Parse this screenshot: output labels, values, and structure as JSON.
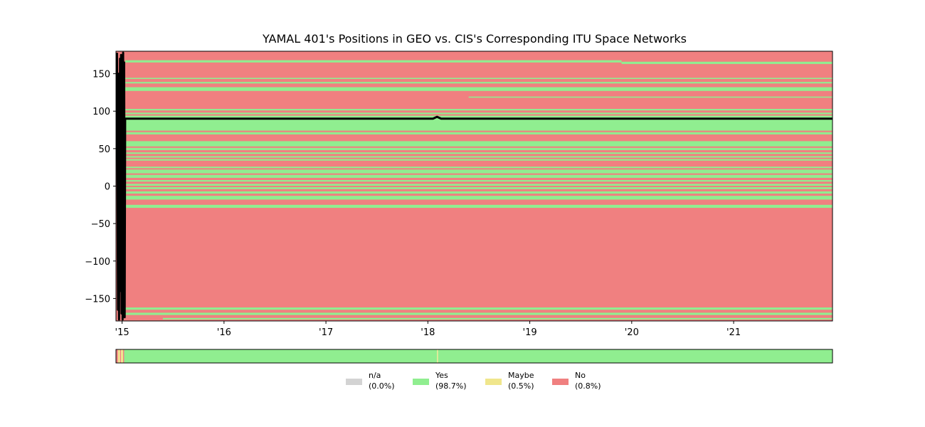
{
  "chart_data": {
    "type": "heatmap",
    "title": "YAMAL 401's Positions in GEO vs. CIS's Corresponding ITU Space Networks",
    "xlabel": "",
    "ylabel": "",
    "x_range": [
      2014.94,
      2021.97
    ],
    "y_range": [
      -180,
      180
    ],
    "x_ticks": [
      {
        "value": 2015,
        "label": "'15"
      },
      {
        "value": 2016,
        "label": "'16"
      },
      {
        "value": 2017,
        "label": "'17"
      },
      {
        "value": 2018,
        "label": "'18"
      },
      {
        "value": 2019,
        "label": "'19"
      },
      {
        "value": 2020,
        "label": "'20"
      },
      {
        "value": 2021,
        "label": "'21"
      }
    ],
    "y_ticks": [
      {
        "value": 150,
        "label": "150"
      },
      {
        "value": 100,
        "label": "100"
      },
      {
        "value": 50,
        "label": "50"
      },
      {
        "value": 0,
        "label": "0"
      },
      {
        "value": -50,
        "label": "−50"
      },
      {
        "value": -100,
        "label": "−100"
      },
      {
        "value": -150,
        "label": "−150"
      }
    ],
    "grid": false,
    "background_status": "No",
    "colors": {
      "n/a": "#d3d3d3",
      "Yes": "#90ee90",
      "Maybe": "#f0e68c",
      "No": "#f08080",
      "position": "#000000"
    },
    "yes_bands": [
      {
        "y0": 165,
        "y1": 168,
        "x0": 2015.03,
        "x1": 2019.9
      },
      {
        "y0": 163,
        "y1": 166,
        "x0": 2019.9,
        "x1": 2021.97
      },
      {
        "y0": 143,
        "y1": 144.5,
        "x0": 2015.03,
        "x1": 2021.97
      },
      {
        "y0": 137,
        "y1": 139,
        "x0": 2015.03,
        "x1": 2021.97
      },
      {
        "y0": 127,
        "y1": 132,
        "x0": 2015.03,
        "x1": 2021.97
      },
      {
        "y0": 118,
        "y1": 119.5,
        "x0": 2018.4,
        "x1": 2021.97
      },
      {
        "y0": 101,
        "y1": 103,
        "x0": 2015.03,
        "x1": 2021.97
      },
      {
        "y0": 96,
        "y1": 98,
        "x0": 2015.03,
        "x1": 2021.97
      },
      {
        "y0": 74,
        "y1": 94,
        "x0": 2015.03,
        "x1": 2021.97
      },
      {
        "y0": 69,
        "y1": 72,
        "x0": 2015.03,
        "x1": 2021.97
      },
      {
        "y0": 53,
        "y1": 60,
        "x0": 2015.03,
        "x1": 2021.97
      },
      {
        "y0": 48,
        "y1": 51,
        "x0": 2015.03,
        "x1": 2021.97
      },
      {
        "y0": 43,
        "y1": 45,
        "x0": 2015.03,
        "x1": 2021.97
      },
      {
        "y0": 38,
        "y1": 40,
        "x0": 2015.03,
        "x1": 2021.97
      },
      {
        "y0": 34,
        "y1": 36,
        "x0": 2015.03,
        "x1": 2021.97
      },
      {
        "y0": 24,
        "y1": 26,
        "x0": 2015.03,
        "x1": 2021.97
      },
      {
        "y0": 17,
        "y1": 22,
        "x0": 2015.03,
        "x1": 2021.97
      },
      {
        "y0": 11,
        "y1": 15,
        "x0": 2015.03,
        "x1": 2021.97
      },
      {
        "y0": 6,
        "y1": 8,
        "x0": 2015.03,
        "x1": 2021.97
      },
      {
        "y0": 0.5,
        "y1": 3,
        "x0": 2015.03,
        "x1": 2021.97
      },
      {
        "y0": -4,
        "y1": -1.5,
        "x0": 2015.03,
        "x1": 2021.97
      },
      {
        "y0": -10,
        "y1": -7,
        "x0": 2015.03,
        "x1": 2021.97
      },
      {
        "y0": -18,
        "y1": -13,
        "x0": 2015.03,
        "x1": 2021.97
      },
      {
        "y0": -29,
        "y1": -25,
        "x0": 2015.03,
        "x1": 2021.97
      },
      {
        "y0": -165,
        "y1": -162,
        "x0": 2015.03,
        "x1": 2021.97
      },
      {
        "y0": -172,
        "y1": -169,
        "x0": 2015.03,
        "x1": 2021.97
      },
      {
        "y0": -178,
        "y1": -176,
        "x0": 2015.4,
        "x1": 2021.97
      }
    ],
    "position_series": [
      {
        "x": 2014.95,
        "y": 178
      },
      {
        "x": 2014.96,
        "y": -165
      },
      {
        "x": 2014.965,
        "y": 150
      },
      {
        "x": 2014.97,
        "y": -178
      },
      {
        "x": 2014.98,
        "y": 170
      },
      {
        "x": 2014.985,
        "y": -140
      },
      {
        "x": 2014.99,
        "y": 175
      },
      {
        "x": 2014.995,
        "y": -170
      },
      {
        "x": 2015.0,
        "y": 160
      },
      {
        "x": 2015.005,
        "y": -178
      },
      {
        "x": 2015.01,
        "y": 178
      },
      {
        "x": 2015.015,
        "y": -150
      },
      {
        "x": 2015.02,
        "y": 165
      },
      {
        "x": 2015.025,
        "y": -175
      },
      {
        "x": 2015.03,
        "y": 90
      },
      {
        "x": 2018.05,
        "y": 90
      },
      {
        "x": 2018.09,
        "y": 92.5
      },
      {
        "x": 2018.13,
        "y": 90
      },
      {
        "x": 2021.97,
        "y": 90
      }
    ],
    "status_strip": [
      {
        "status": "No",
        "x0": 2014.94,
        "x1": 2014.96
      },
      {
        "status": "Maybe",
        "x0": 2014.96,
        "x1": 2014.98
      },
      {
        "status": "No",
        "x0": 2014.98,
        "x1": 2014.99
      },
      {
        "status": "Maybe",
        "x0": 2014.99,
        "x1": 2015.01
      },
      {
        "status": "No",
        "x0": 2015.01,
        "x1": 2015.02
      },
      {
        "status": "Yes",
        "x0": 2015.02,
        "x1": 2018.09
      },
      {
        "status": "Maybe",
        "x0": 2018.09,
        "x1": 2018.1
      },
      {
        "status": "Yes",
        "x0": 2018.1,
        "x1": 2021.97
      }
    ],
    "legend": {
      "placement": "bottom-center",
      "entries": [
        {
          "name": "n/a",
          "pct": "(0.0%)",
          "color": "#d3d3d3"
        },
        {
          "name": "Yes",
          "pct": "(98.7%)",
          "color": "#90ee90"
        },
        {
          "name": "Maybe",
          "pct": "(0.5%)",
          "color": "#f0e68c"
        },
        {
          "name": "No",
          "pct": "(0.8%)",
          "color": "#f08080"
        }
      ]
    }
  }
}
